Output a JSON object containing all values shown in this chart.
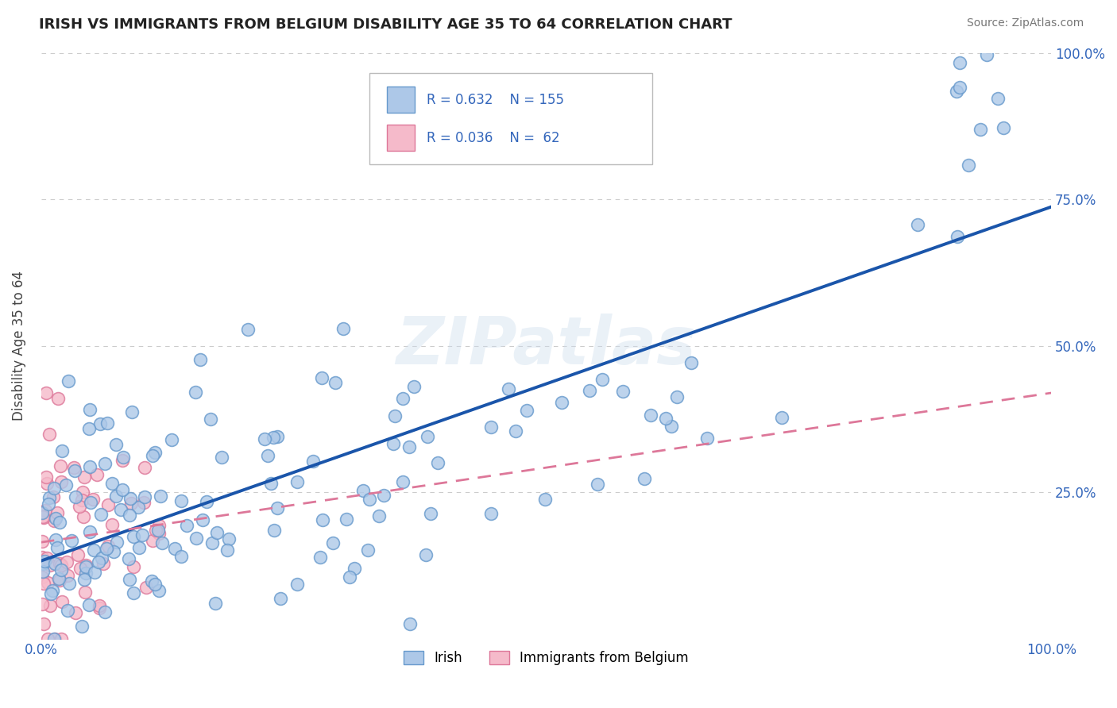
{
  "title": "IRISH VS IMMIGRANTS FROM BELGIUM DISABILITY AGE 35 TO 64 CORRELATION CHART",
  "source": "Source: ZipAtlas.com",
  "ylabel": "Disability Age 35 to 64",
  "xlim": [
    0,
    1
  ],
  "ylim": [
    0,
    1
  ],
  "ytick_vals": [
    0,
    0.25,
    0.5,
    0.75,
    1.0
  ],
  "right_ytick_vals": [
    0.25,
    0.5,
    0.75,
    1.0
  ],
  "right_ytick_labels": [
    "25.0%",
    "50.0%",
    "75.0%",
    "100.0%"
  ],
  "xtick_vals": [
    0,
    1
  ],
  "xtick_labels": [
    "0.0%",
    "100.0%"
  ],
  "irish_R": 0.632,
  "irish_N": 155,
  "belgium_R": 0.036,
  "belgium_N": 62,
  "irish_color": "#adc8e8",
  "irish_edge": "#6699cc",
  "belgium_color": "#f5baca",
  "belgium_edge": "#dd7799",
  "irish_line_color": "#1a55aa",
  "belgium_line_color": "#dd7799",
  "legend_irish_face": "#adc8e8",
  "legend_belgium_face": "#f5baca",
  "background_color": "#ffffff",
  "grid_color": "#cccccc",
  "title_color": "#222222",
  "source_color": "#777777",
  "axis_label_color": "#444444",
  "tick_label_color": "#3366bb",
  "stat_label_color": "#3366bb"
}
